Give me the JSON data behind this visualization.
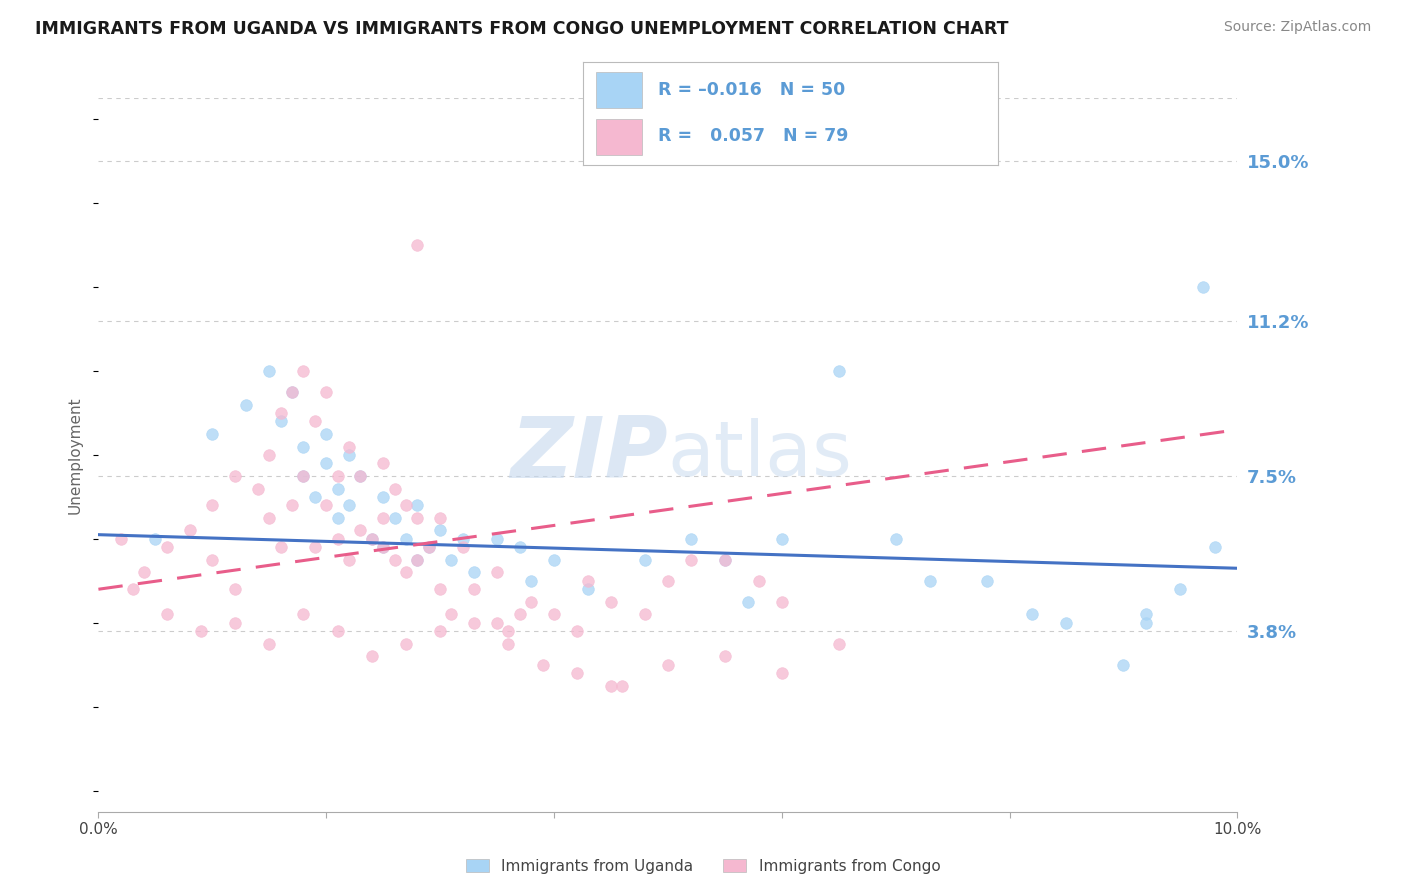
{
  "title": "IMMIGRANTS FROM UGANDA VS IMMIGRANTS FROM CONGO UNEMPLOYMENT CORRELATION CHART",
  "source": "Source: ZipAtlas.com",
  "ylabel": "Unemployment",
  "xlim": [
    0.0,
    0.1
  ],
  "ylim": [
    -0.005,
    0.165
  ],
  "yticks": [
    0.038,
    0.075,
    0.112,
    0.15
  ],
  "ytick_labels": [
    "3.8%",
    "7.5%",
    "11.2%",
    "15.0%"
  ],
  "legend_r_uganda": "-0.016",
  "legend_n_uganda": "50",
  "legend_r_congo": "0.057",
  "legend_n_congo": "79",
  "uganda_color": "#a8d4f5",
  "congo_color": "#f5b8d0",
  "trendline_uganda_color": "#4472c4",
  "trendline_congo_color": "#e85d8a",
  "background_color": "#ffffff",
  "grid_color": "#cccccc",
  "axis_label_color": "#5b9bd5",
  "title_color": "#1a1a1a",
  "source_color": "#888888",
  "uganda_scatter_x": [
    0.005,
    0.01,
    0.013,
    0.015,
    0.016,
    0.017,
    0.018,
    0.018,
    0.019,
    0.02,
    0.02,
    0.021,
    0.021,
    0.022,
    0.022,
    0.023,
    0.024,
    0.025,
    0.025,
    0.026,
    0.027,
    0.028,
    0.028,
    0.029,
    0.03,
    0.031,
    0.032,
    0.033,
    0.035,
    0.037,
    0.038,
    0.04,
    0.043,
    0.048,
    0.052,
    0.055,
    0.057,
    0.06,
    0.065,
    0.07,
    0.073,
    0.078,
    0.082,
    0.085,
    0.09,
    0.092,
    0.095,
    0.097,
    0.092,
    0.098
  ],
  "uganda_scatter_y": [
    0.06,
    0.085,
    0.092,
    0.1,
    0.088,
    0.095,
    0.082,
    0.075,
    0.07,
    0.085,
    0.078,
    0.072,
    0.065,
    0.08,
    0.068,
    0.075,
    0.06,
    0.07,
    0.058,
    0.065,
    0.06,
    0.055,
    0.068,
    0.058,
    0.062,
    0.055,
    0.06,
    0.052,
    0.06,
    0.058,
    0.05,
    0.055,
    0.048,
    0.055,
    0.06,
    0.055,
    0.045,
    0.06,
    0.1,
    0.06,
    0.05,
    0.05,
    0.042,
    0.04,
    0.03,
    0.042,
    0.048,
    0.12,
    0.04,
    0.058
  ],
  "congo_scatter_x": [
    0.002,
    0.004,
    0.006,
    0.008,
    0.01,
    0.01,
    0.012,
    0.012,
    0.014,
    0.015,
    0.015,
    0.016,
    0.016,
    0.017,
    0.017,
    0.018,
    0.018,
    0.019,
    0.019,
    0.02,
    0.02,
    0.021,
    0.021,
    0.022,
    0.022,
    0.023,
    0.023,
    0.024,
    0.025,
    0.025,
    0.025,
    0.026,
    0.026,
    0.027,
    0.027,
    0.028,
    0.028,
    0.029,
    0.03,
    0.03,
    0.031,
    0.032,
    0.033,
    0.035,
    0.035,
    0.036,
    0.037,
    0.038,
    0.04,
    0.042,
    0.043,
    0.045,
    0.048,
    0.05,
    0.052,
    0.055,
    0.058,
    0.06,
    0.028,
    0.045,
    0.003,
    0.006,
    0.009,
    0.012,
    0.015,
    0.018,
    0.021,
    0.024,
    0.027,
    0.03,
    0.033,
    0.036,
    0.039,
    0.042,
    0.046,
    0.05,
    0.055,
    0.06,
    0.065
  ],
  "congo_scatter_y": [
    0.06,
    0.052,
    0.058,
    0.062,
    0.068,
    0.055,
    0.075,
    0.048,
    0.072,
    0.08,
    0.065,
    0.09,
    0.058,
    0.095,
    0.068,
    0.1,
    0.075,
    0.088,
    0.058,
    0.095,
    0.068,
    0.075,
    0.06,
    0.082,
    0.055,
    0.075,
    0.062,
    0.06,
    0.078,
    0.065,
    0.058,
    0.072,
    0.055,
    0.068,
    0.052,
    0.065,
    0.055,
    0.058,
    0.048,
    0.065,
    0.042,
    0.058,
    0.048,
    0.04,
    0.052,
    0.038,
    0.042,
    0.045,
    0.042,
    0.038,
    0.05,
    0.045,
    0.042,
    0.05,
    0.055,
    0.055,
    0.05,
    0.045,
    0.13,
    0.025,
    0.048,
    0.042,
    0.038,
    0.04,
    0.035,
    0.042,
    0.038,
    0.032,
    0.035,
    0.038,
    0.04,
    0.035,
    0.03,
    0.028,
    0.025,
    0.03,
    0.032,
    0.028,
    0.035
  ],
  "trendline_uganda_slope": -0.08,
  "trendline_uganda_intercept": 0.061,
  "trendline_congo_slope": 0.38,
  "trendline_congo_intercept": 0.048
}
